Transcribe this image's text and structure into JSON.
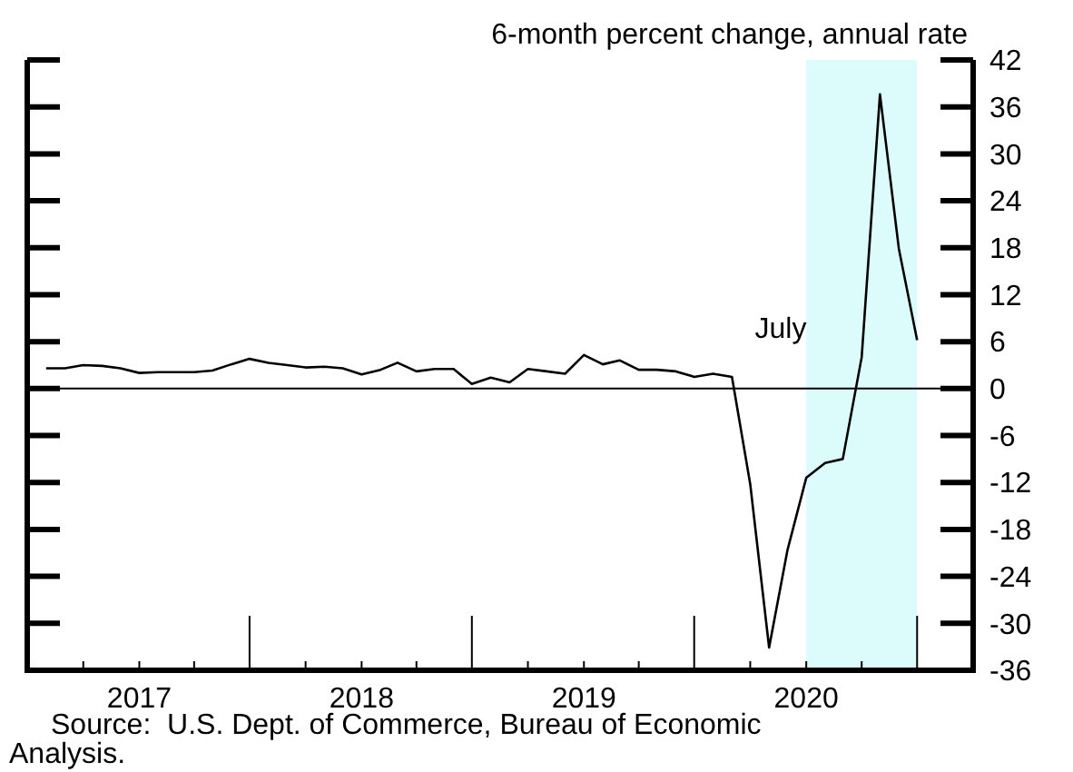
{
  "chart_data": {
    "type": "line",
    "ylabel": "6-month percent change, annual rate",
    "x": [
      "2016-08",
      "2016-09",
      "2016-10",
      "2016-11",
      "2016-12",
      "2017-01",
      "2017-02",
      "2017-03",
      "2017-04",
      "2017-05",
      "2017-06",
      "2017-07",
      "2017-08",
      "2017-09",
      "2017-10",
      "2017-11",
      "2017-12",
      "2018-01",
      "2018-02",
      "2018-03",
      "2018-04",
      "2018-05",
      "2018-06",
      "2018-07",
      "2018-08",
      "2018-09",
      "2018-10",
      "2018-11",
      "2018-12",
      "2019-01",
      "2019-02",
      "2019-03",
      "2019-04",
      "2019-05",
      "2019-06",
      "2019-07",
      "2019-08",
      "2019-09",
      "2019-10",
      "2019-11",
      "2019-12",
      "2020-01",
      "2020-02",
      "2020-03",
      "2020-04",
      "2020-05",
      "2020-06",
      "2020-07"
    ],
    "series": [
      {
        "color": "#000000",
        "values": [
          2.6,
          2.6,
          3.0,
          2.9,
          2.6,
          2.0,
          2.1,
          2.1,
          2.1,
          2.3,
          3.1,
          3.8,
          3.3,
          3.0,
          2.7,
          2.8,
          2.6,
          1.8,
          2.4,
          3.3,
          2.2,
          2.5,
          2.5,
          0.6,
          1.4,
          0.8,
          2.5,
          2.2,
          1.9,
          4.3,
          3.1,
          3.6,
          2.4,
          2.4,
          2.2,
          1.5,
          1.9,
          1.5,
          -12.2,
          -33.1,
          -20.7,
          -11.4,
          -9.5,
          -9.0,
          4.0,
          37.6,
          17.9,
          6.2
        ]
      }
    ],
    "xlim": [
      "2016-07",
      "2020-10"
    ],
    "xticks": [
      {
        "value": "2016-10",
        "label": null
      },
      {
        "value": "2017-01",
        "label": "2017"
      },
      {
        "value": "2017-04",
        "label": null
      },
      {
        "value": "2017-07",
        "label": null
      },
      {
        "value": "2017-10",
        "label": null
      },
      {
        "value": "2018-01",
        "label": "2018"
      },
      {
        "value": "2018-04",
        "label": null
      },
      {
        "value": "2018-07",
        "label": null
      },
      {
        "value": "2018-10",
        "label": null
      },
      {
        "value": "2019-01",
        "label": "2019"
      },
      {
        "value": "2019-04",
        "label": null
      },
      {
        "value": "2019-07",
        "label": null
      },
      {
        "value": "2019-10",
        "label": null
      },
      {
        "value": "2020-01",
        "label": "2020"
      },
      {
        "value": "2020-04",
        "label": null
      },
      {
        "value": "2020-07",
        "label": null
      }
    ],
    "ylim": [
      -36,
      42
    ],
    "yticks": [
      -36,
      -30,
      -24,
      -18,
      -12,
      -6,
      0,
      6,
      12,
      18,
      24,
      30,
      36,
      42
    ],
    "ref_lines": [
      {
        "axis": "y",
        "value": 0,
        "color": "#000000"
      }
    ],
    "bands": [
      {
        "axis": "x",
        "from": "2020-01",
        "to": "2020-07",
        "color": "#dcfcfc"
      }
    ],
    "annotations": [
      "July",
      "Source:  U.S. Dept. of Commerce, Bureau of Economic Analysis."
    ],
    "grid": false,
    "marker": "none",
    "line_style": "solid"
  }
}
